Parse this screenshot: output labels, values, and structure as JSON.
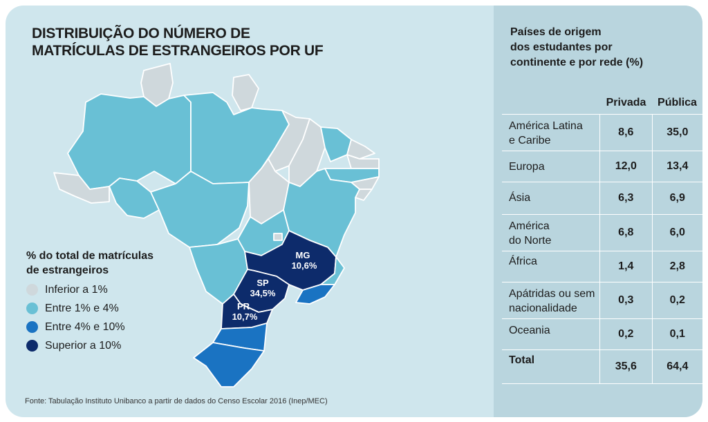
{
  "title": {
    "line1": "DISTRIBUIÇÃO DO NÚMERO DE",
    "line2": "MATRÍCULAS DE ESTRANGEIROS POR UF"
  },
  "legend": {
    "title_line1": "% do total de matrículas",
    "title_line2": "de estrangeiros",
    "items": [
      {
        "label": "Inferior a 1%",
        "color": "#cfd8dc"
      },
      {
        "label": "Entre 1% e 4%",
        "color": "#69c0d5"
      },
      {
        "label": "Entre 4% e 10%",
        "color": "#1a73c2"
      },
      {
        "label": "Superior a 10%",
        "color": "#0d2b6b"
      }
    ]
  },
  "map_labels": {
    "mg": {
      "uf": "MG",
      "value": "10,6%"
    },
    "sp": {
      "uf": "SP",
      "value": "34,5%"
    },
    "pr": {
      "uf": "PR",
      "value": "10,7%"
    }
  },
  "source": "Fonte: Tabulação Instituto Unibanco a partir de dados do Censo Escolar 2016 (Inep/MEC)",
  "table": {
    "title_line1": "Países de origem",
    "title_line2": "dos estudantes por",
    "title_line3": "continente e por rede (%)",
    "headers": [
      "Privada",
      "Pública"
    ],
    "rows": [
      {
        "label_line1": "América Latina",
        "label_line2": "e Caribe",
        "privada": "8,6",
        "publica": "35,0"
      },
      {
        "label_line1": "Europa",
        "label_line2": "",
        "privada": "12,0",
        "publica": "13,4"
      },
      {
        "label_line1": "Ásia",
        "label_line2": "",
        "privada": "6,3",
        "publica": "6,9"
      },
      {
        "label_line1": "América",
        "label_line2": "do Norte",
        "privada": "6,8",
        "publica": "6,0"
      },
      {
        "label_line1": "África",
        "label_line2": "",
        "privada": "1,4",
        "publica": "2,8"
      },
      {
        "label_line1": "Apátridas ou sem",
        "label_line2": "nacionalidade",
        "privada": "0,3",
        "publica": "0,2"
      },
      {
        "label_line1": "Oceania",
        "label_line2": "",
        "privada": "0,2",
        "publica": "0,1"
      },
      {
        "label_line1": "Total",
        "label_line2": "",
        "privada": "35,6",
        "publica": "64,4"
      }
    ]
  },
  "chart_data": {
    "type": "table",
    "title": "Países de origem dos estudantes por continente e por rede (%)",
    "columns": [
      "Privada",
      "Pública"
    ],
    "rows": [
      {
        "continent": "América Latina e Caribe",
        "Privada": 8.6,
        "Pública": 35.0
      },
      {
        "continent": "Europa",
        "Privada": 12.0,
        "Pública": 13.4
      },
      {
        "continent": "Ásia",
        "Privada": 6.3,
        "Pública": 6.9
      },
      {
        "continent": "América do Norte",
        "Privada": 6.8,
        "Pública": 6.0
      },
      {
        "continent": "África",
        "Privada": 1.4,
        "Pública": 2.8
      },
      {
        "continent": "Apátridas ou sem nacionalidade",
        "Privada": 0.3,
        "Pública": 0.2
      },
      {
        "continent": "Oceania",
        "Privada": 0.2,
        "Pública": 0.1
      },
      {
        "continent": "Total",
        "Privada": 35.6,
        "Pública": 64.4
      }
    ],
    "map": {
      "title": "DISTRIBUIÇÃO DO NÚMERO DE MATRÍCULAS DE ESTRANGEIROS POR UF",
      "labeled_states": [
        {
          "uf": "MG",
          "percent": 10.6,
          "category": "Superior a 10%"
        },
        {
          "uf": "SP",
          "percent": 34.5,
          "category": "Superior a 10%"
        },
        {
          "uf": "PR",
          "percent": 10.7,
          "category": "Superior a 10%"
        }
      ]
    }
  }
}
